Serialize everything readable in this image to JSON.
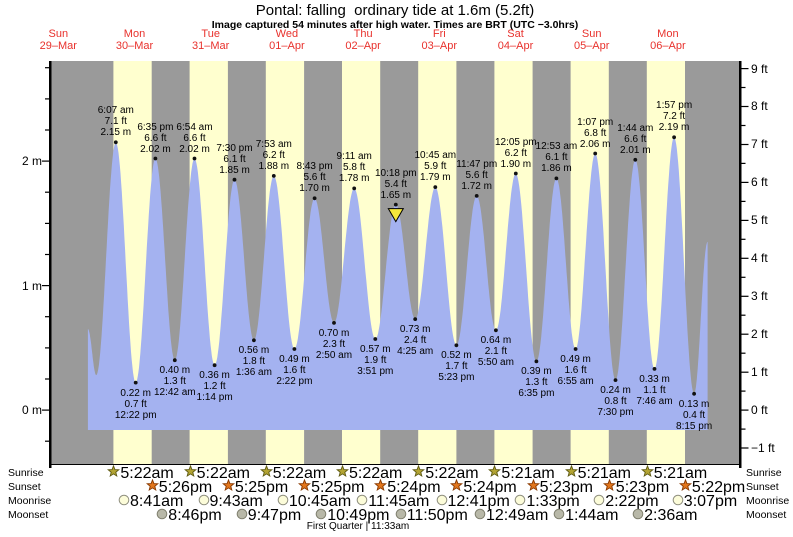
{
  "header": {
    "title": "Pontal: falling  ordinary tide at 1.6m (5.2ft)",
    "subtitle": "Image captured 54 minutes after high water. Times are BRT (UTC −3.0hrs)"
  },
  "colors": {
    "night_band": "#9a9a9a",
    "day_band": "#ffffcf",
    "tide_fill": "#a4b2f0",
    "date_label_red": "#e8312c",
    "axis_black": "#000000",
    "current_marker_yellow": "#f5e73c",
    "sunrise_star": "#b3a433",
    "sunset_star": "#e2761c",
    "moonrise_circle": "#fcfcd9",
    "moonset_circle": "#b8b8a8"
  },
  "icons": {
    "sunrise": "sunrise-star-icon",
    "sunset": "sunset-star-icon",
    "moonrise": "moonrise-circle-icon",
    "moonset": "moonset-circle-icon",
    "current_tide": "current-tide-triangle-icon"
  },
  "chart_data": {
    "type": "area",
    "title": "Pontal: falling  ordinary tide at 1.6m (5.2ft)",
    "x_days": [
      {
        "weekday": "Sun",
        "date": "29–Mar"
      },
      {
        "weekday": "Mon",
        "date": "30–Mar"
      },
      {
        "weekday": "Tue",
        "date": "31–Mar"
      },
      {
        "weekday": "Wed",
        "date": "01–Apr"
      },
      {
        "weekday": "Thu",
        "date": "02–Apr"
      },
      {
        "weekday": "Fri",
        "date": "03–Apr"
      },
      {
        "weekday": "Sat",
        "date": "04–Apr"
      },
      {
        "weekday": "Sun",
        "date": "05–Apr"
      },
      {
        "weekday": "Mon",
        "date": "06–Apr"
      }
    ],
    "y_axis_left": {
      "unit": "m",
      "labels": [
        "2 m",
        "1 m",
        "0 m"
      ],
      "values": [
        2,
        1,
        0
      ],
      "minor_step": 0.25,
      "range": [
        -0.25,
        2.75
      ]
    },
    "y_axis_right": {
      "unit": "ft",
      "labels": [
        "9 ft",
        "8 ft",
        "7 ft",
        "6 ft",
        "5 ft",
        "4 ft",
        "3 ft",
        "2 ft",
        "1 ft",
        "0 ft",
        "−1 ft"
      ],
      "values": [
        9,
        8,
        7,
        6,
        5,
        4,
        3,
        2,
        1,
        0,
        -1
      ],
      "minor_step": 0.5
    },
    "high_tides": [
      {
        "day": 1,
        "time": "6:07 am",
        "ft": "7.1 ft",
        "m": "2.15 m",
        "value_m": 2.15
      },
      {
        "day": 1,
        "time": "6:35 pm",
        "ft": "6.6 ft",
        "m": "2.02 m",
        "value_m": 2.02
      },
      {
        "day": 2,
        "time": "6:54 am",
        "ft": "6.6 ft",
        "m": "2.02 m",
        "value_m": 2.02
      },
      {
        "day": 2,
        "time": "7:30 pm",
        "ft": "6.1 ft",
        "m": "1.85 m",
        "value_m": 1.85
      },
      {
        "day": 3,
        "time": "7:53 am",
        "ft": "6.2 ft",
        "m": "1.88 m",
        "value_m": 1.88
      },
      {
        "day": 3,
        "time": "8:43 pm",
        "ft": "5.6 ft",
        "m": "1.70 m",
        "value_m": 1.7
      },
      {
        "day": 4,
        "time": "9:11 am",
        "ft": "5.8 ft",
        "m": "1.78 m",
        "value_m": 1.78
      },
      {
        "day": 4,
        "time": "10:18 pm",
        "ft": "5.4 ft",
        "m": "1.65 m",
        "value_m": 1.65,
        "current": true
      },
      {
        "day": 5,
        "time": "10:45 am",
        "ft": "5.9 ft",
        "m": "1.79 m",
        "value_m": 1.79
      },
      {
        "day": 5,
        "time": "11:47 pm",
        "ft": "5.6 ft",
        "m": "1.72 m",
        "value_m": 1.72
      },
      {
        "day": 6,
        "time": "12:05 pm",
        "ft": "6.2 ft",
        "m": "1.90 m",
        "value_m": 1.9
      },
      {
        "day": 7,
        "time": "12:53 am",
        "ft": "6.1 ft",
        "m": "1.86 m",
        "value_m": 1.86
      },
      {
        "day": 7,
        "time": "1:07 pm",
        "ft": "6.8 ft",
        "m": "2.06 m",
        "value_m": 2.06
      },
      {
        "day": 8,
        "time": "1:44 am",
        "ft": "6.6 ft",
        "m": "2.01 m",
        "value_m": 2.01
      },
      {
        "day": 8,
        "time": "1:57 pm",
        "ft": "7.2 ft",
        "m": "2.19 m",
        "value_m": 2.19
      }
    ],
    "low_tides": [
      {
        "day": 1,
        "time": "12:22 pm",
        "ft": "0.7 ft",
        "m": "0.22 m",
        "value_m": 0.22
      },
      {
        "day": 2,
        "time": "12:42 am",
        "ft": "1.3 ft",
        "m": "0.40 m",
        "value_m": 0.4
      },
      {
        "day": 2,
        "time": "1:14 pm",
        "ft": "1.2 ft",
        "m": "0.36 m",
        "value_m": 0.36
      },
      {
        "day": 3,
        "time": "1:36 am",
        "ft": "1.8 ft",
        "m": "0.56 m",
        "value_m": 0.56
      },
      {
        "day": 3,
        "time": "2:22 pm",
        "ft": "1.6 ft",
        "m": "0.49 m",
        "value_m": 0.49
      },
      {
        "day": 4,
        "time": "2:50 am",
        "ft": "2.3 ft",
        "m": "0.70 m",
        "value_m": 0.7
      },
      {
        "day": 4,
        "time": "3:51 pm",
        "ft": "1.9 ft",
        "m": "0.57 m",
        "value_m": 0.57
      },
      {
        "day": 5,
        "time": "4:25 am",
        "ft": "2.4 ft",
        "m": "0.73 m",
        "value_m": 0.73
      },
      {
        "day": 5,
        "time": "5:23 pm",
        "ft": "1.7 ft",
        "m": "0.52 m",
        "value_m": 0.52
      },
      {
        "day": 6,
        "time": "5:50 am",
        "ft": "2.1 ft",
        "m": "0.64 m",
        "value_m": 0.64
      },
      {
        "day": 6,
        "time": "6:35 pm",
        "ft": "1.3 ft",
        "m": "0.39 m",
        "value_m": 0.39
      },
      {
        "day": 7,
        "time": "6:55 am",
        "ft": "1.6 ft",
        "m": "0.49 m",
        "value_m": 0.49
      },
      {
        "day": 7,
        "time": "7:30 pm",
        "ft": "0.8 ft",
        "m": "0.24 m",
        "value_m": 0.24
      },
      {
        "day": 8,
        "time": "7:46 am",
        "ft": "1.1 ft",
        "m": "0.33 m",
        "value_m": 0.33
      },
      {
        "day": 8,
        "time": "8:15 pm",
        "ft": "0.4 ft",
        "m": "0.13 m",
        "value_m": 0.13
      }
    ],
    "unlabeled_edge_points": {
      "lead_in": [
        {
          "day": 0,
          "time": "9:20 pm",
          "value_m": 0.65
        },
        {
          "day": 0,
          "time": "11:57 pm",
          "value_m": 0.28
        }
      ],
      "tail_out": [
        {
          "day": 9,
          "time": "0:30 am",
          "value_m": 1.35
        }
      ]
    }
  },
  "astro": {
    "row_labels": [
      "Sunrise",
      "Sunset",
      "Moonrise",
      "Moonset"
    ],
    "sunrise": [
      {
        "day": 1,
        "time": "5:22am"
      },
      {
        "day": 2,
        "time": "5:22am"
      },
      {
        "day": 3,
        "time": "5:22am"
      },
      {
        "day": 4,
        "time": "5:22am"
      },
      {
        "day": 5,
        "time": "5:22am"
      },
      {
        "day": 6,
        "time": "5:21am"
      },
      {
        "day": 7,
        "time": "5:21am"
      },
      {
        "day": 8,
        "time": "5:21am"
      }
    ],
    "sunset": [
      {
        "day": 1,
        "time": "5:26pm"
      },
      {
        "day": 2,
        "time": "5:25pm"
      },
      {
        "day": 3,
        "time": "5:25pm"
      },
      {
        "day": 4,
        "time": "5:24pm"
      },
      {
        "day": 5,
        "time": "5:24pm"
      },
      {
        "day": 6,
        "time": "5:23pm"
      },
      {
        "day": 7,
        "time": "5:23pm"
      },
      {
        "day": 8,
        "time": "5:22pm"
      }
    ],
    "moonrise": [
      {
        "day": 1,
        "time": "8:41am"
      },
      {
        "day": 2,
        "time": "9:43am"
      },
      {
        "day": 3,
        "time": "10:45am"
      },
      {
        "day": 4,
        "time": "11:45am"
      },
      {
        "day": 5,
        "time": "12:41pm"
      },
      {
        "day": 6,
        "time": "1:33pm"
      },
      {
        "day": 7,
        "time": "2:22pm"
      },
      {
        "day": 8,
        "time": "3:07pm"
      }
    ],
    "moonset": [
      {
        "day": 1,
        "time": "8:46pm"
      },
      {
        "day": 2,
        "time": "9:47pm"
      },
      {
        "day": 3,
        "time": "10:49pm"
      },
      {
        "day": 4,
        "time": "11:50pm"
      },
      {
        "day": 6,
        "time": "12:49am"
      },
      {
        "day": 7,
        "time": "1:44am"
      },
      {
        "day": 8,
        "time": "2:36am"
      }
    ],
    "moon_phase": "First Quarter | 11:33am"
  }
}
